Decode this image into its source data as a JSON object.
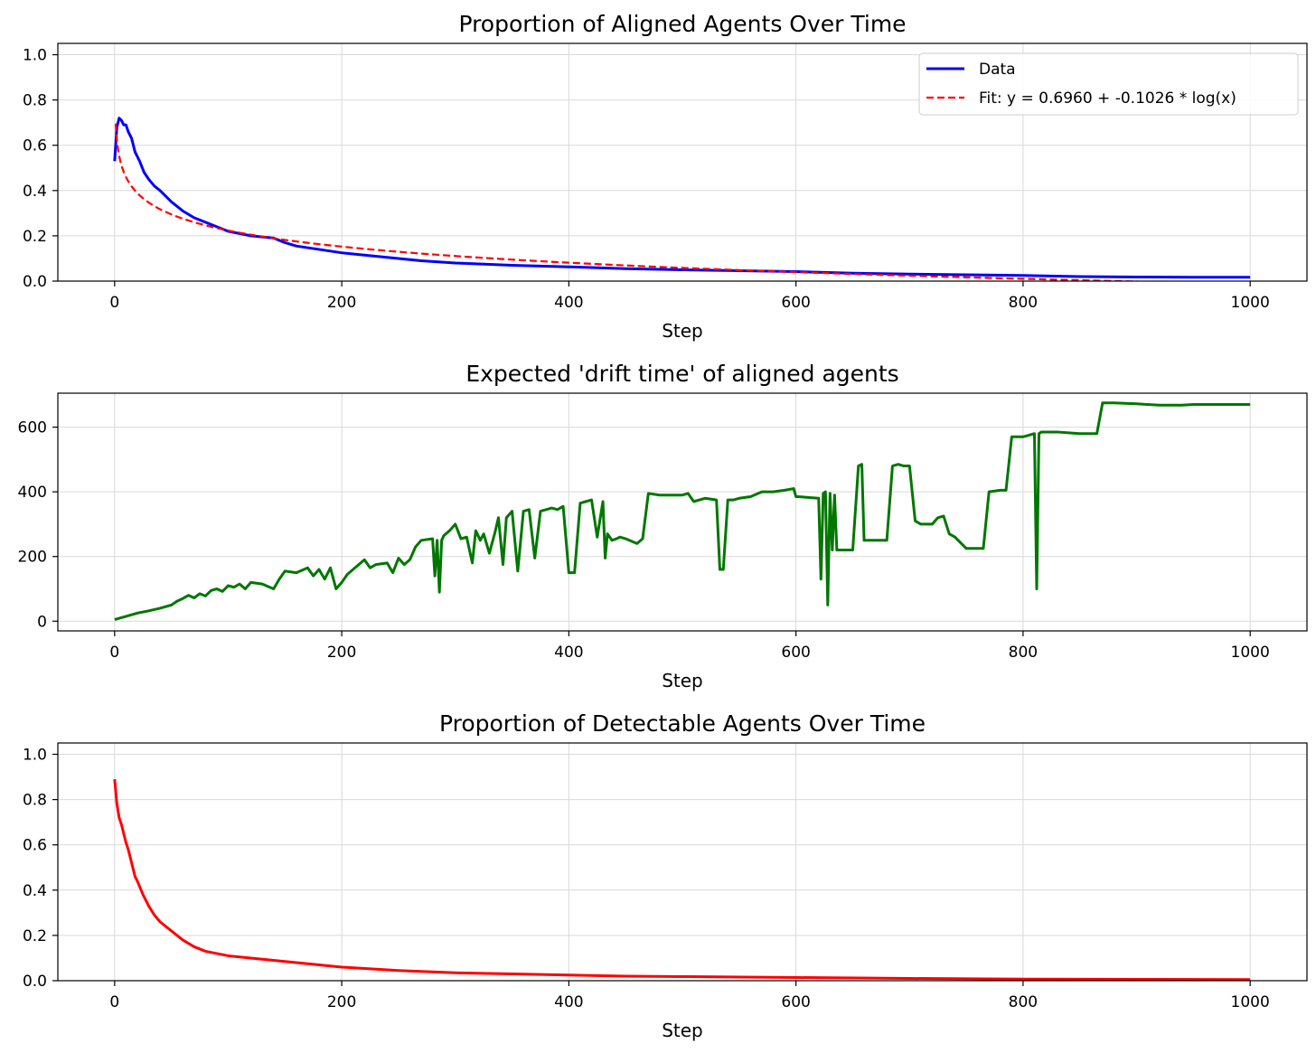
{
  "chart_data": [
    {
      "type": "line",
      "title": "Proportion of Aligned Agents Over Time",
      "xlabel": "Step",
      "ylabel": "",
      "xlim": [
        -50,
        1050
      ],
      "ylim": [
        0.0,
        1.05
      ],
      "xticks": [
        "0",
        "200",
        "400",
        "600",
        "800",
        "1000"
      ],
      "yticks": [
        "0.0",
        "0.2",
        "0.4",
        "0.6",
        "0.8",
        "1.0"
      ],
      "grid": true,
      "legend": "top-right",
      "series": [
        {
          "name": "Data",
          "color": "#0000ff",
          "style": "solid",
          "x": [
            0,
            2,
            4,
            6,
            8,
            10,
            12,
            15,
            18,
            22,
            26,
            30,
            35,
            40,
            50,
            60,
            70,
            80,
            90,
            100,
            120,
            140,
            150,
            160,
            180,
            200,
            220,
            250,
            270,
            300,
            350,
            400,
            450,
            500,
            550,
            600,
            650,
            700,
            750,
            800,
            850,
            900,
            950,
            1000
          ],
          "y": [
            0.53,
            0.68,
            0.72,
            0.71,
            0.69,
            0.69,
            0.66,
            0.63,
            0.57,
            0.53,
            0.48,
            0.45,
            0.42,
            0.4,
            0.35,
            0.31,
            0.28,
            0.26,
            0.24,
            0.22,
            0.2,
            0.19,
            0.17,
            0.155,
            0.14,
            0.125,
            0.115,
            0.1,
            0.09,
            0.08,
            0.07,
            0.063,
            0.055,
            0.05,
            0.046,
            0.042,
            0.035,
            0.031,
            0.028,
            0.025,
            0.02,
            0.018,
            0.017,
            0.017
          ]
        },
        {
          "name": "Fit: y = 0.6960 + -0.1026 * log(x)",
          "color": "#ff0000",
          "style": "dashed",
          "function": {
            "a": 0.696,
            "b": -0.1026,
            "x_start": 1,
            "x_end": 1000
          }
        }
      ]
    },
    {
      "type": "line",
      "title": "Expected 'drift time' of aligned agents",
      "xlabel": "Step",
      "ylabel": "",
      "xlim": [
        -50,
        1050
      ],
      "ylim": [
        -30,
        705
      ],
      "xticks": [
        "0",
        "200",
        "400",
        "600",
        "800",
        "1000"
      ],
      "yticks": [
        "0",
        "200",
        "400",
        "600"
      ],
      "grid": true,
      "series": [
        {
          "name": "",
          "color": "#007700",
          "style": "solid",
          "x": [
            0,
            10,
            20,
            30,
            40,
            50,
            55,
            60,
            65,
            70,
            75,
            80,
            85,
            90,
            95,
            100,
            105,
            110,
            115,
            120,
            130,
            140,
            145,
            150,
            160,
            170,
            175,
            180,
            185,
            190,
            195,
            200,
            205,
            210,
            220,
            225,
            230,
            240,
            245,
            250,
            255,
            260,
            265,
            270,
            280,
            282,
            284,
            286,
            288,
            290,
            295,
            300,
            305,
            310,
            315,
            318,
            322,
            325,
            330,
            335,
            338,
            342,
            345,
            350,
            355,
            360,
            365,
            370,
            375,
            380,
            385,
            390,
            395,
            400,
            402,
            405,
            410,
            415,
            420,
            425,
            430,
            432,
            434,
            438,
            442,
            445,
            450,
            460,
            465,
            470,
            480,
            490,
            500,
            505,
            510,
            520,
            530,
            533,
            536,
            540,
            545,
            550,
            560,
            570,
            580,
            590,
            598,
            600,
            602,
            620,
            622,
            624,
            626,
            628,
            630,
            632,
            634,
            636,
            640,
            650,
            655,
            658,
            660,
            670,
            680,
            685,
            690,
            695,
            700,
            705,
            710,
            720,
            725,
            730,
            735,
            740,
            750,
            760,
            765,
            770,
            780,
            785,
            790,
            800,
            805,
            810,
            812,
            814,
            816,
            820,
            830,
            850,
            860,
            865,
            870,
            880,
            900,
            920,
            940,
            950,
            1000
          ],
          "y": [
            5,
            15,
            25,
            32,
            40,
            50,
            62,
            70,
            80,
            72,
            85,
            78,
            95,
            100,
            92,
            110,
            105,
            115,
            100,
            120,
            115,
            100,
            130,
            155,
            150,
            165,
            140,
            160,
            130,
            165,
            100,
            120,
            145,
            160,
            190,
            165,
            175,
            180,
            150,
            195,
            175,
            190,
            230,
            250,
            255,
            140,
            250,
            90,
            250,
            265,
            280,
            300,
            255,
            260,
            180,
            280,
            250,
            270,
            210,
            275,
            320,
            175,
            320,
            340,
            155,
            340,
            345,
            195,
            340,
            345,
            350,
            345,
            355,
            150,
            150,
            150,
            365,
            370,
            375,
            260,
            370,
            195,
            270,
            250,
            255,
            260,
            255,
            240,
            255,
            395,
            390,
            390,
            390,
            395,
            370,
            380,
            375,
            160,
            160,
            375,
            375,
            380,
            385,
            400,
            400,
            405,
            410,
            385,
            385,
            380,
            130,
            395,
            400,
            50,
            395,
            220,
            390,
            220,
            220,
            220,
            480,
            485,
            250,
            250,
            250,
            480,
            485,
            480,
            480,
            310,
            300,
            300,
            320,
            325,
            270,
            260,
            225,
            225,
            225,
            400,
            405,
            405,
            570,
            570,
            575,
            580,
            100,
            580,
            585,
            585,
            585,
            580,
            580,
            580,
            675,
            675,
            672,
            668,
            668,
            670,
            670
          ]
        }
      ]
    },
    {
      "type": "line",
      "title": "Proportion of Detectable Agents Over Time",
      "xlabel": "Step",
      "ylabel": "",
      "xlim": [
        -50,
        1050
      ],
      "ylim": [
        0.0,
        1.05
      ],
      "xticks": [
        "0",
        "200",
        "400",
        "600",
        "800",
        "1000"
      ],
      "yticks": [
        "0.0",
        "0.2",
        "0.4",
        "0.6",
        "0.8",
        "1.0"
      ],
      "grid": true,
      "series": [
        {
          "name": "",
          "color": "#ff0000",
          "style": "solid",
          "x": [
            0,
            2,
            4,
            6,
            8,
            10,
            12,
            15,
            18,
            20,
            25,
            30,
            35,
            40,
            50,
            60,
            70,
            80,
            100,
            120,
            150,
            180,
            200,
            250,
            300,
            350,
            400,
            450,
            500,
            600,
            700,
            800,
            900,
            1000
          ],
          "y": [
            0.89,
            0.78,
            0.72,
            0.69,
            0.65,
            0.61,
            0.58,
            0.52,
            0.46,
            0.44,
            0.38,
            0.33,
            0.29,
            0.26,
            0.22,
            0.18,
            0.15,
            0.13,
            0.11,
            0.1,
            0.085,
            0.07,
            0.06,
            0.045,
            0.035,
            0.03,
            0.025,
            0.02,
            0.018,
            0.014,
            0.01,
            0.007,
            0.006,
            0.005
          ]
        }
      ]
    }
  ]
}
